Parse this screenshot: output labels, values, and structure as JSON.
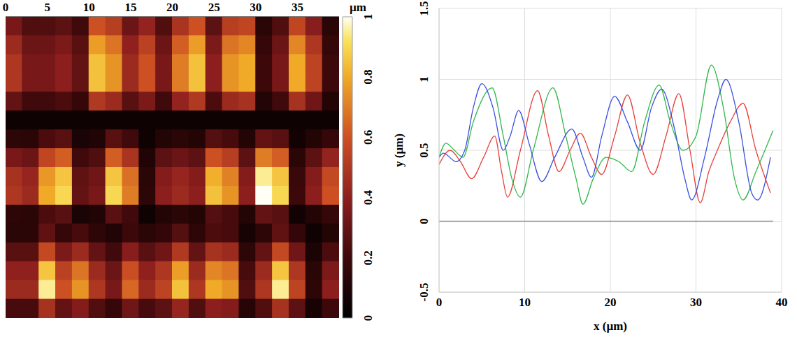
{
  "chart_data": [
    {
      "type": "heatmap",
      "xlim": [
        0,
        40
      ],
      "xticks": [
        0,
        5,
        10,
        15,
        20,
        25,
        30,
        35
      ],
      "x": [
        1,
        3,
        5,
        7,
        9,
        11,
        13,
        15,
        17,
        19,
        21,
        23,
        25,
        27,
        29,
        31,
        33,
        35,
        37,
        39
      ],
      "cells": [
        [
          0.35,
          0.25,
          0.25,
          0.28,
          0.21,
          0.6,
          0.53,
          0.32,
          0.42,
          0.25,
          0.49,
          0.6,
          0.28,
          0.53,
          0.56,
          0.14,
          0.25,
          0.56,
          0.39,
          0.14
        ],
        [
          0.45,
          0.32,
          0.32,
          0.36,
          0.27,
          0.77,
          0.68,
          0.41,
          0.54,
          0.32,
          0.63,
          0.77,
          0.36,
          0.68,
          0.72,
          0.18,
          0.32,
          0.72,
          0.5,
          0.18
        ],
        [
          0.5,
          0.35,
          0.35,
          0.4,
          0.3,
          0.85,
          0.75,
          0.45,
          0.6,
          0.35,
          0.7,
          0.85,
          0.4,
          0.75,
          0.8,
          0.2,
          0.35,
          0.8,
          0.55,
          0.2
        ],
        [
          0.5,
          0.35,
          0.35,
          0.4,
          0.3,
          0.85,
          0.75,
          0.45,
          0.6,
          0.35,
          0.7,
          0.85,
          0.4,
          0.75,
          0.8,
          0.2,
          0.35,
          0.8,
          0.55,
          0.2
        ],
        [
          0.3,
          0.21,
          0.21,
          0.24,
          0.18,
          0.51,
          0.45,
          0.27,
          0.36,
          0.21,
          0.42,
          0.51,
          0.24,
          0.45,
          0.48,
          0.12,
          0.21,
          0.48,
          0.33,
          0.12
        ],
        [
          0.05,
          0.05,
          0.05,
          0.05,
          0.05,
          0.05,
          0.05,
          0.05,
          0.05,
          0.05,
          0.05,
          0.05,
          0.05,
          0.05,
          0.05,
          0.05,
          0.05,
          0.05,
          0.05,
          0.05
        ],
        [
          0.15,
          0.14,
          0.24,
          0.27,
          0.09,
          0.11,
          0.27,
          0.21,
          0.05,
          0.12,
          0.14,
          0.12,
          0.26,
          0.23,
          0.12,
          0.3,
          0.27,
          0.06,
          0.12,
          0.18
        ],
        [
          0.35,
          0.32,
          0.56,
          0.63,
          0.21,
          0.25,
          0.63,
          0.49,
          0.11,
          0.28,
          0.32,
          0.28,
          0.6,
          0.53,
          0.28,
          0.7,
          0.63,
          0.14,
          0.28,
          0.42
        ],
        [
          0.48,
          0.43,
          0.76,
          0.86,
          0.29,
          0.33,
          0.86,
          0.67,
          0.14,
          0.38,
          0.43,
          0.38,
          0.81,
          0.71,
          0.38,
          0.95,
          0.86,
          0.19,
          0.38,
          0.57
        ],
        [
          0.5,
          0.45,
          0.8,
          0.9,
          0.3,
          0.35,
          0.9,
          0.7,
          0.15,
          0.4,
          0.45,
          0.4,
          0.85,
          0.75,
          0.4,
          1.0,
          0.9,
          0.2,
          0.4,
          0.6
        ],
        [
          0.15,
          0.14,
          0.24,
          0.27,
          0.09,
          0.11,
          0.27,
          0.21,
          0.05,
          0.12,
          0.14,
          0.12,
          0.26,
          0.23,
          0.12,
          0.3,
          0.27,
          0.06,
          0.12,
          0.18
        ],
        [
          0.14,
          0.14,
          0.29,
          0.18,
          0.23,
          0.15,
          0.11,
          0.2,
          0.14,
          0.17,
          0.26,
          0.15,
          0.24,
          0.23,
          0.08,
          0.15,
          0.29,
          0.17,
          0.05,
          0.12
        ],
        [
          0.27,
          0.27,
          0.57,
          0.36,
          0.45,
          0.3,
          0.21,
          0.39,
          0.27,
          0.33,
          0.51,
          0.3,
          0.48,
          0.45,
          0.15,
          0.3,
          0.57,
          0.33,
          0.09,
          0.24
        ],
        [
          0.41,
          0.41,
          0.86,
          0.54,
          0.68,
          0.45,
          0.32,
          0.59,
          0.41,
          0.5,
          0.77,
          0.45,
          0.72,
          0.68,
          0.23,
          0.45,
          0.86,
          0.5,
          0.14,
          0.36
        ],
        [
          0.45,
          0.45,
          0.95,
          0.6,
          0.75,
          0.5,
          0.35,
          0.65,
          0.45,
          0.55,
          0.85,
          0.5,
          0.8,
          0.75,
          0.25,
          0.5,
          0.95,
          0.55,
          0.15,
          0.4
        ],
        [
          0.23,
          0.23,
          0.48,
          0.3,
          0.38,
          0.25,
          0.18,
          0.33,
          0.23,
          0.28,
          0.43,
          0.25,
          0.4,
          0.38,
          0.13,
          0.25,
          0.48,
          0.28,
          0.08,
          0.2
        ]
      ],
      "colorbar": {
        "label": "µm",
        "range": [
          0,
          1
        ],
        "ticks": [
          0,
          0.2,
          0.4,
          0.6,
          0.8,
          1
        ]
      }
    },
    {
      "type": "line",
      "x_label": "x (µm)",
      "y_label": "y (µm)",
      "xlim": [
        0,
        40
      ],
      "xticks": [
        0,
        10,
        20,
        30,
        40
      ],
      "ylim": [
        -0.5,
        1.5
      ],
      "yticks": [
        -0.5,
        0,
        0.5,
        1,
        1.5
      ],
      "grid": true,
      "series": [
        {
          "color": "#e8403a",
          "line_style": "solid",
          "x": [
            0,
            1.3,
            2.5,
            3.8,
            5.2,
            6.5,
            7.3,
            8,
            9.5,
            11.5,
            12.8,
            14,
            15.3,
            16.5,
            17.8,
            19,
            20.5,
            22,
            23.5,
            25,
            26.5,
            28,
            29.3,
            30.5,
            31.5,
            32.5,
            34,
            35.5,
            37,
            38.7
          ],
          "values": [
            0.4,
            0.5,
            0.42,
            0.3,
            0.45,
            0.6,
            0.35,
            0.17,
            0.5,
            0.92,
            0.6,
            0.35,
            0.5,
            0.62,
            0.45,
            0.33,
            0.6,
            0.89,
            0.55,
            0.33,
            0.6,
            0.9,
            0.5,
            0.13,
            0.35,
            0.5,
            0.7,
            0.83,
            0.5,
            0.2
          ]
        },
        {
          "color": "#2fb84a",
          "line_style": "solid",
          "x": [
            0,
            0.8,
            1.8,
            2.8,
            4,
            6.2,
            7.5,
            8.5,
            9.5,
            11,
            13.3,
            14.8,
            16,
            16.8,
            18,
            19.5,
            21,
            22.5,
            24,
            25.7,
            27,
            28.5,
            30,
            31.8,
            33.2,
            34.5,
            35.5,
            37,
            39
          ],
          "values": [
            0.45,
            0.55,
            0.5,
            0.45,
            0.7,
            0.94,
            0.6,
            0.3,
            0.17,
            0.5,
            0.94,
            0.6,
            0.3,
            0.12,
            0.3,
            0.45,
            0.42,
            0.35,
            0.7,
            0.96,
            0.7,
            0.5,
            0.6,
            1.1,
            0.8,
            0.3,
            0.15,
            0.35,
            0.64
          ]
        },
        {
          "color": "#3b4fe0",
          "line_style": "solid",
          "x": [
            0,
            0.5,
            2,
            3,
            4,
            5,
            6.3,
            7.5,
            8.3,
            9.3,
            10.5,
            12,
            13.5,
            15.5,
            16.8,
            17.8,
            19,
            20.5,
            22,
            23.5,
            24.8,
            26,
            27.5,
            28.7,
            29.5,
            31,
            32.5,
            33.5,
            35,
            36.5,
            37.2,
            38.7
          ],
          "values": [
            0.45,
            0.48,
            0.42,
            0.5,
            0.8,
            0.97,
            0.8,
            0.5,
            0.6,
            0.78,
            0.55,
            0.28,
            0.45,
            0.65,
            0.45,
            0.31,
            0.6,
            0.88,
            0.7,
            0.5,
            0.8,
            0.93,
            0.65,
            0.3,
            0.15,
            0.45,
            0.85,
            1.0,
            0.7,
            0.2,
            0.15,
            0.45
          ]
        },
        {
          "color": "#8c8c8c",
          "line_style": "solid",
          "x": [
            0,
            39
          ],
          "values": [
            0,
            0
          ]
        }
      ]
    }
  ]
}
